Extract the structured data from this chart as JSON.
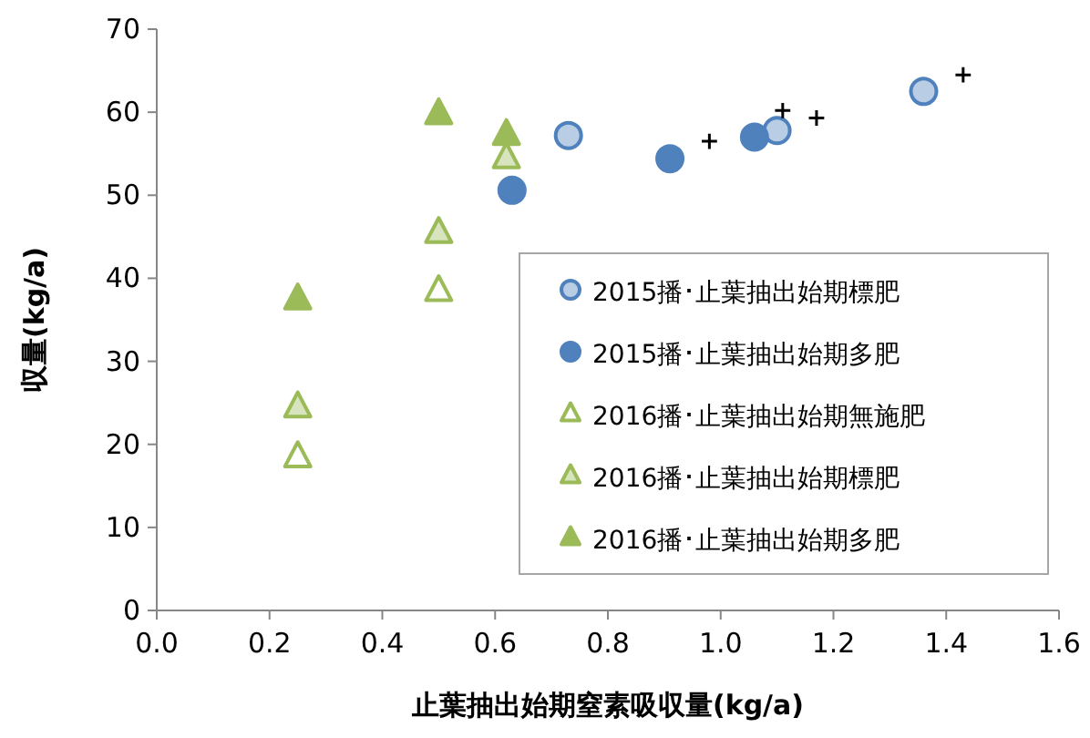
{
  "chart_data": {
    "type": "scatter",
    "xlabel": "止葉抽出始期窒素吸収量(kg/a)",
    "ylabel": "収量(kg/a)",
    "xlim": [
      0,
      1.6
    ],
    "xticks": [
      {
        "value": 0,
        "label": "0.0"
      },
      0.2,
      0.4,
      0.6,
      0.8,
      {
        "value": 1,
        "label": "1.0"
      },
      1.2,
      1.4,
      1.6
    ],
    "ylim": [
      0,
      70
    ],
    "yticks": [
      0,
      10,
      20,
      30,
      40,
      50,
      60,
      70
    ],
    "grid": false,
    "legend": "bottom right",
    "series": [
      {
        "name": "2015播･止葉抽出始期標肥",
        "color": "#b9cde5",
        "marker": "circle",
        "x": [
          0.73,
          1.1,
          1.36
        ],
        "values": [
          57.2,
          57.8,
          62.5
        ]
      },
      {
        "name": "2015播･止葉抽出始期多肥",
        "color": "#4f81bd",
        "marker": "circle",
        "x": [
          0.63,
          0.91,
          1.06
        ],
        "values": [
          50.6,
          54.4,
          57.0
        ]
      },
      {
        "name": "2016播･止葉抽出始期無施肥",
        "color": "#ffffff",
        "marker": "triangle",
        "x": [
          0.25,
          0.5
        ],
        "values": [
          18.5,
          38.5
        ]
      },
      {
        "name": "2016播･止葉抽出始期標肥",
        "color": "#d7e4bd",
        "marker": "triangle",
        "x": [
          0.25,
          0.5,
          0.62
        ],
        "values": [
          24.5,
          45.5,
          54.5
        ]
      },
      {
        "name": "2016播･止葉抽出始期多肥",
        "color": "#9bbb59",
        "marker": "triangle",
        "x": [
          0.25,
          0.5,
          0.62
        ],
        "values": [
          37.5,
          59.8,
          57.3
        ]
      },
      {
        "color": "#000000",
        "marker": "cross",
        "x": [
          0.98,
          1.11,
          1.17,
          1.43
        ],
        "values": [
          56.5,
          60.2,
          59.3,
          64.5
        ]
      }
    ]
  }
}
